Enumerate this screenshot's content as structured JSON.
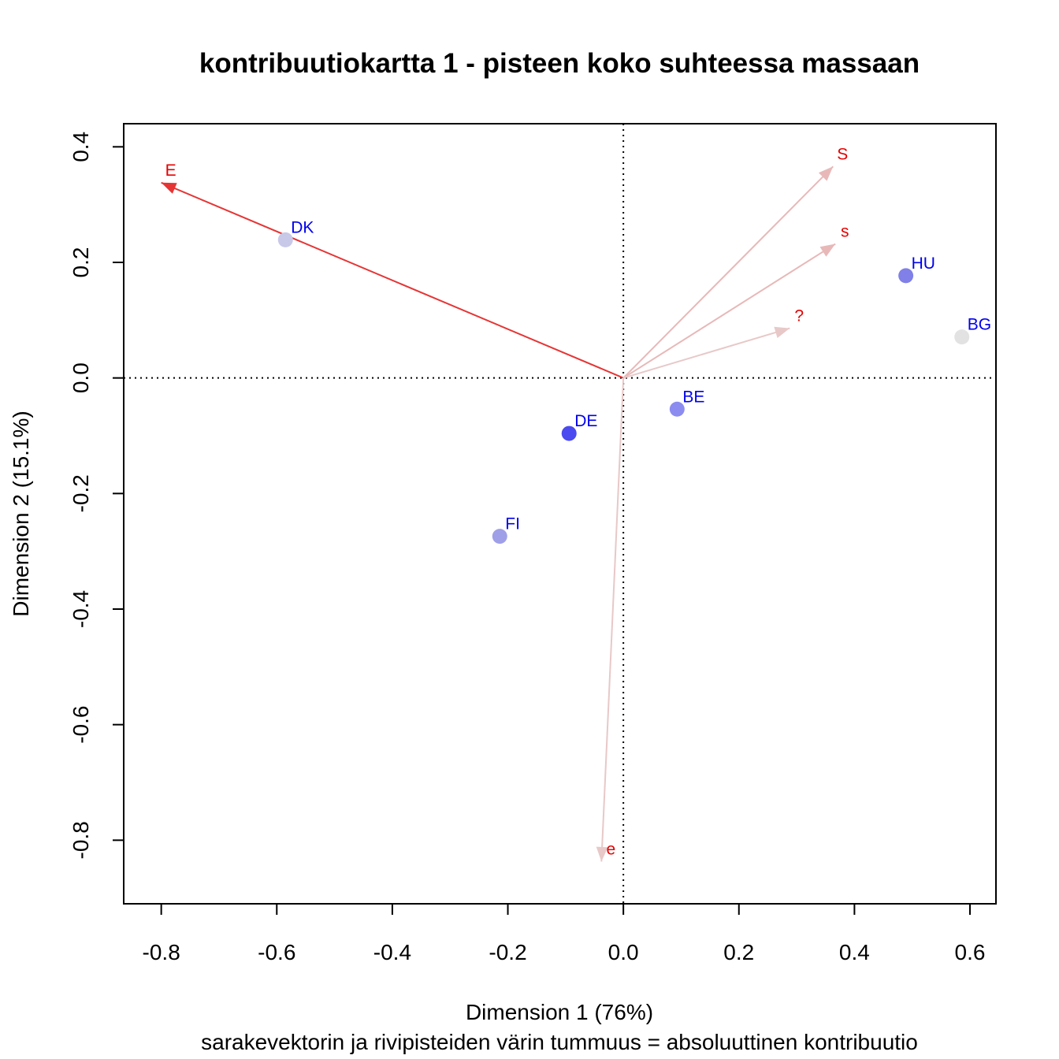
{
  "chart_data": {
    "type": "scatter",
    "title": "kontribuutiokartta 1 - pisteen koko suhteessa massaan",
    "xlabel": "Dimension 1 (76%)",
    "ylabel": "Dimension 2 (15.1%)",
    "subtitle": "sarakevektorin ja rivipisteiden värin tummuus = absoluuttinen kontribuutio",
    "xlim": [
      -0.865,
      0.645
    ],
    "ylim": [
      -0.91,
      0.44
    ],
    "xticks": [
      "-0.8",
      "-0.6",
      "-0.4",
      "-0.2",
      "0.0",
      "0.2",
      "0.4",
      "0.6"
    ],
    "yticks": [
      "-0.8",
      "-0.6",
      "-0.4",
      "-0.2",
      "0.0",
      "0.2",
      "0.4"
    ],
    "reference_lines": {
      "x": 0,
      "y": 0,
      "style": "dotted"
    },
    "row_points": [
      {
        "label": "DK",
        "x": -0.585,
        "y": 0.239,
        "color": "#c8c8e8"
      },
      {
        "label": "HU",
        "x": 0.489,
        "y": 0.177,
        "color": "#8080e8"
      },
      {
        "label": "BG",
        "x": 0.586,
        "y": 0.071,
        "color": "#e2e2e2"
      },
      {
        "label": "BE",
        "x": 0.093,
        "y": -0.054,
        "color": "#8c8cf0"
      },
      {
        "label": "DE",
        "x": -0.094,
        "y": -0.096,
        "color": "#4a4af0"
      },
      {
        "label": "FI",
        "x": -0.214,
        "y": -0.274,
        "color": "#9f9fe8"
      }
    ],
    "column_vectors": [
      {
        "label": "E",
        "x": -0.8,
        "y": 0.338,
        "color": "#e53535"
      },
      {
        "label": "S",
        "x": 0.363,
        "y": 0.366,
        "color": "#e8b8b8"
      },
      {
        "label": "s",
        "x": 0.367,
        "y": 0.232,
        "color": "#e8b8b8"
      },
      {
        "label": "?",
        "x": 0.288,
        "y": 0.086,
        "color": "#e8c8c8"
      },
      {
        "label": "e",
        "x": -0.038,
        "y": -0.837,
        "color": "#e8c8c8"
      }
    ]
  }
}
